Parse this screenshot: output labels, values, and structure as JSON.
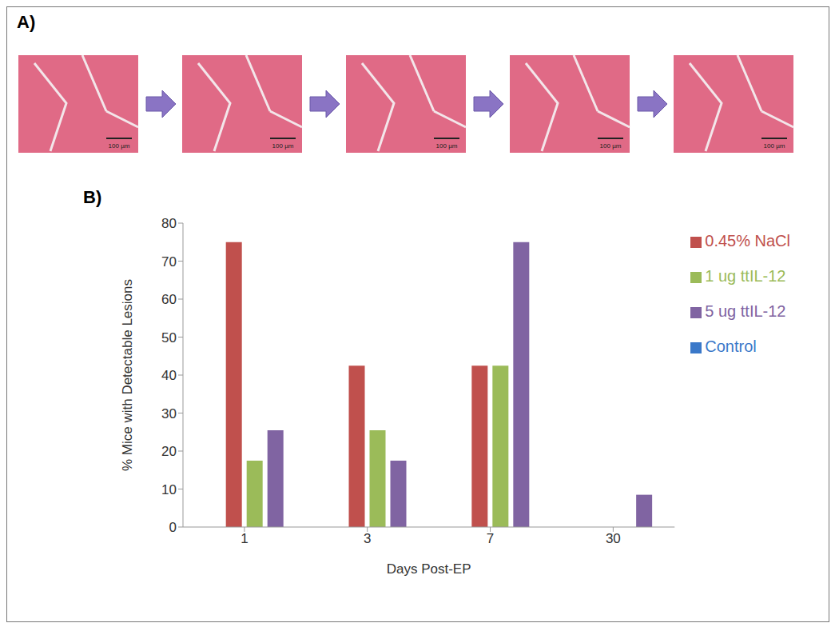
{
  "panel_labels": [
    "A)",
    "B)"
  ],
  "panel_a": {
    "scale_bar": "100 µm",
    "images": 5
  },
  "chart_data": {
    "type": "bar",
    "x_label": "Days Post-EP",
    "y_label": "% Mice with Detectable Lesions",
    "categories": [
      "1",
      "3",
      "7",
      "30"
    ],
    "series": [
      {
        "name": "Control",
        "color": "#3a78c9",
        "values": [
          0,
          0,
          0,
          0
        ]
      },
      {
        "name": "0.45% NaCl",
        "color": "#c0504d",
        "values": [
          75,
          42.5,
          42.5,
          0
        ]
      },
      {
        "name": "1 ug ttIL-12",
        "color": "#9bbb59",
        "values": [
          17.5,
          25.5,
          42.5,
          0
        ]
      },
      {
        "name": "5 ug ttIL-12",
        "color": "#8064a2",
        "values": [
          25.5,
          17.5,
          75,
          8.5
        ]
      }
    ],
    "ylim": [
      0,
      80
    ],
    "yticks": [
      0,
      10,
      20,
      30,
      40,
      50,
      60,
      70,
      80
    ],
    "grid": false,
    "legend": "right"
  }
}
